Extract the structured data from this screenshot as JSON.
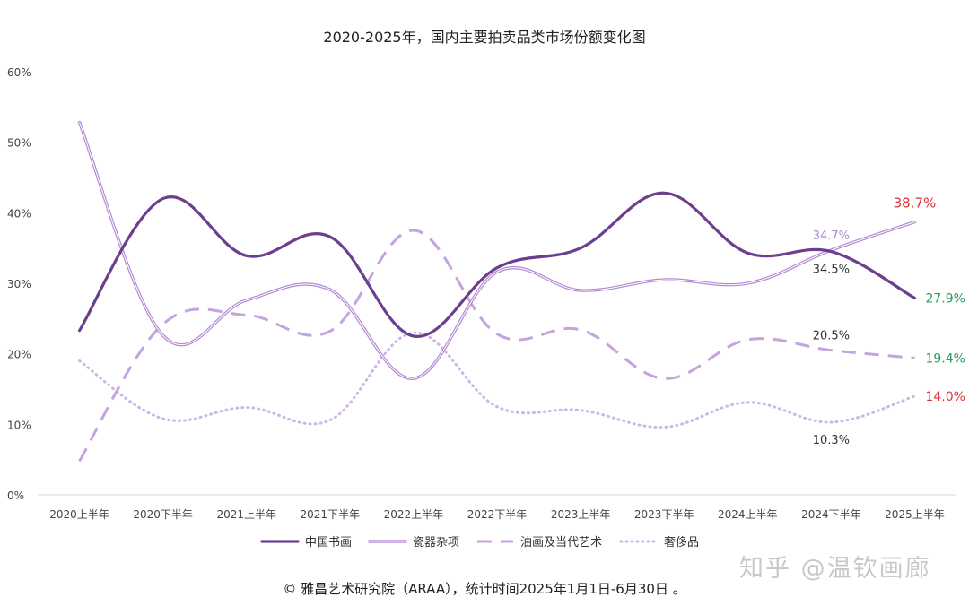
{
  "chart_data": {
    "type": "line",
    "title": "2020-2025年，国内主要拍卖品类市场份额变化图",
    "categories": [
      "2020上半年",
      "2020下半年",
      "2021上半年",
      "2021下半年",
      "2022上半年",
      "2022下半年",
      "2023上半年",
      "2023下半年",
      "2024上半年",
      "2024下半年",
      "2025上半年"
    ],
    "ylim": [
      0,
      60
    ],
    "yticks": [
      "0%",
      "10%",
      "20%",
      "30%",
      "40%",
      "50%",
      "60%"
    ],
    "grid": false,
    "legend_position": "bottom",
    "series": [
      {
        "name": "中国书画",
        "color": "#6b3f8e",
        "style": "solid-thick",
        "values": [
          23.3,
          42.0,
          33.9,
          36.6,
          22.5,
          32.2,
          35.0,
          42.8,
          34.3,
          34.5,
          27.9
        ]
      },
      {
        "name": "瓷器杂项",
        "color": "#b48ad6",
        "style": "double",
        "values": [
          52.8,
          22.6,
          27.6,
          29.1,
          16.5,
          31.6,
          29.0,
          30.5,
          30.0,
          34.7,
          38.7
        ]
      },
      {
        "name": "油画及当代艺术",
        "color": "#c4a3df",
        "style": "dashed",
        "values": [
          4.8,
          24.2,
          25.5,
          23.2,
          37.5,
          22.8,
          23.4,
          16.5,
          22.0,
          20.5,
          19.4
        ]
      },
      {
        "name": "奢侈品",
        "color": "#cdb6e6",
        "style": "dotted",
        "values": [
          19.0,
          10.8,
          12.4,
          10.6,
          23.0,
          12.5,
          12.0,
          9.6,
          13.1,
          10.3,
          14.0
        ]
      }
    ],
    "annotations": [
      {
        "text": "34.7%",
        "color": "#a98bcc",
        "series": 1,
        "index": 9,
        "pos": "above"
      },
      {
        "text": "34.5%",
        "color": "#333333",
        "series": 0,
        "index": 9,
        "pos": "below"
      },
      {
        "text": "20.5%",
        "color": "#333333",
        "series": 2,
        "index": 9,
        "pos": "above"
      },
      {
        "text": "10.3%",
        "color": "#333333",
        "series": 3,
        "index": 9,
        "pos": "below"
      },
      {
        "text": "38.7%",
        "color": "#e0303a",
        "series": 1,
        "index": 10,
        "pos": "above"
      },
      {
        "text": "27.9%",
        "color": "#23a060",
        "series": 0,
        "index": 10,
        "pos": "right"
      },
      {
        "text": "19.4%",
        "color": "#23a060",
        "series": 2,
        "index": 10,
        "pos": "right"
      },
      {
        "text": "14.0%",
        "color": "#e0303a",
        "series": 3,
        "index": 10,
        "pos": "right"
      }
    ]
  },
  "source_text": "© 雅昌艺术研究院（ARAA），统计时间2025年1月1日-6月30日 。",
  "watermark": "知乎 @温钦画廊"
}
